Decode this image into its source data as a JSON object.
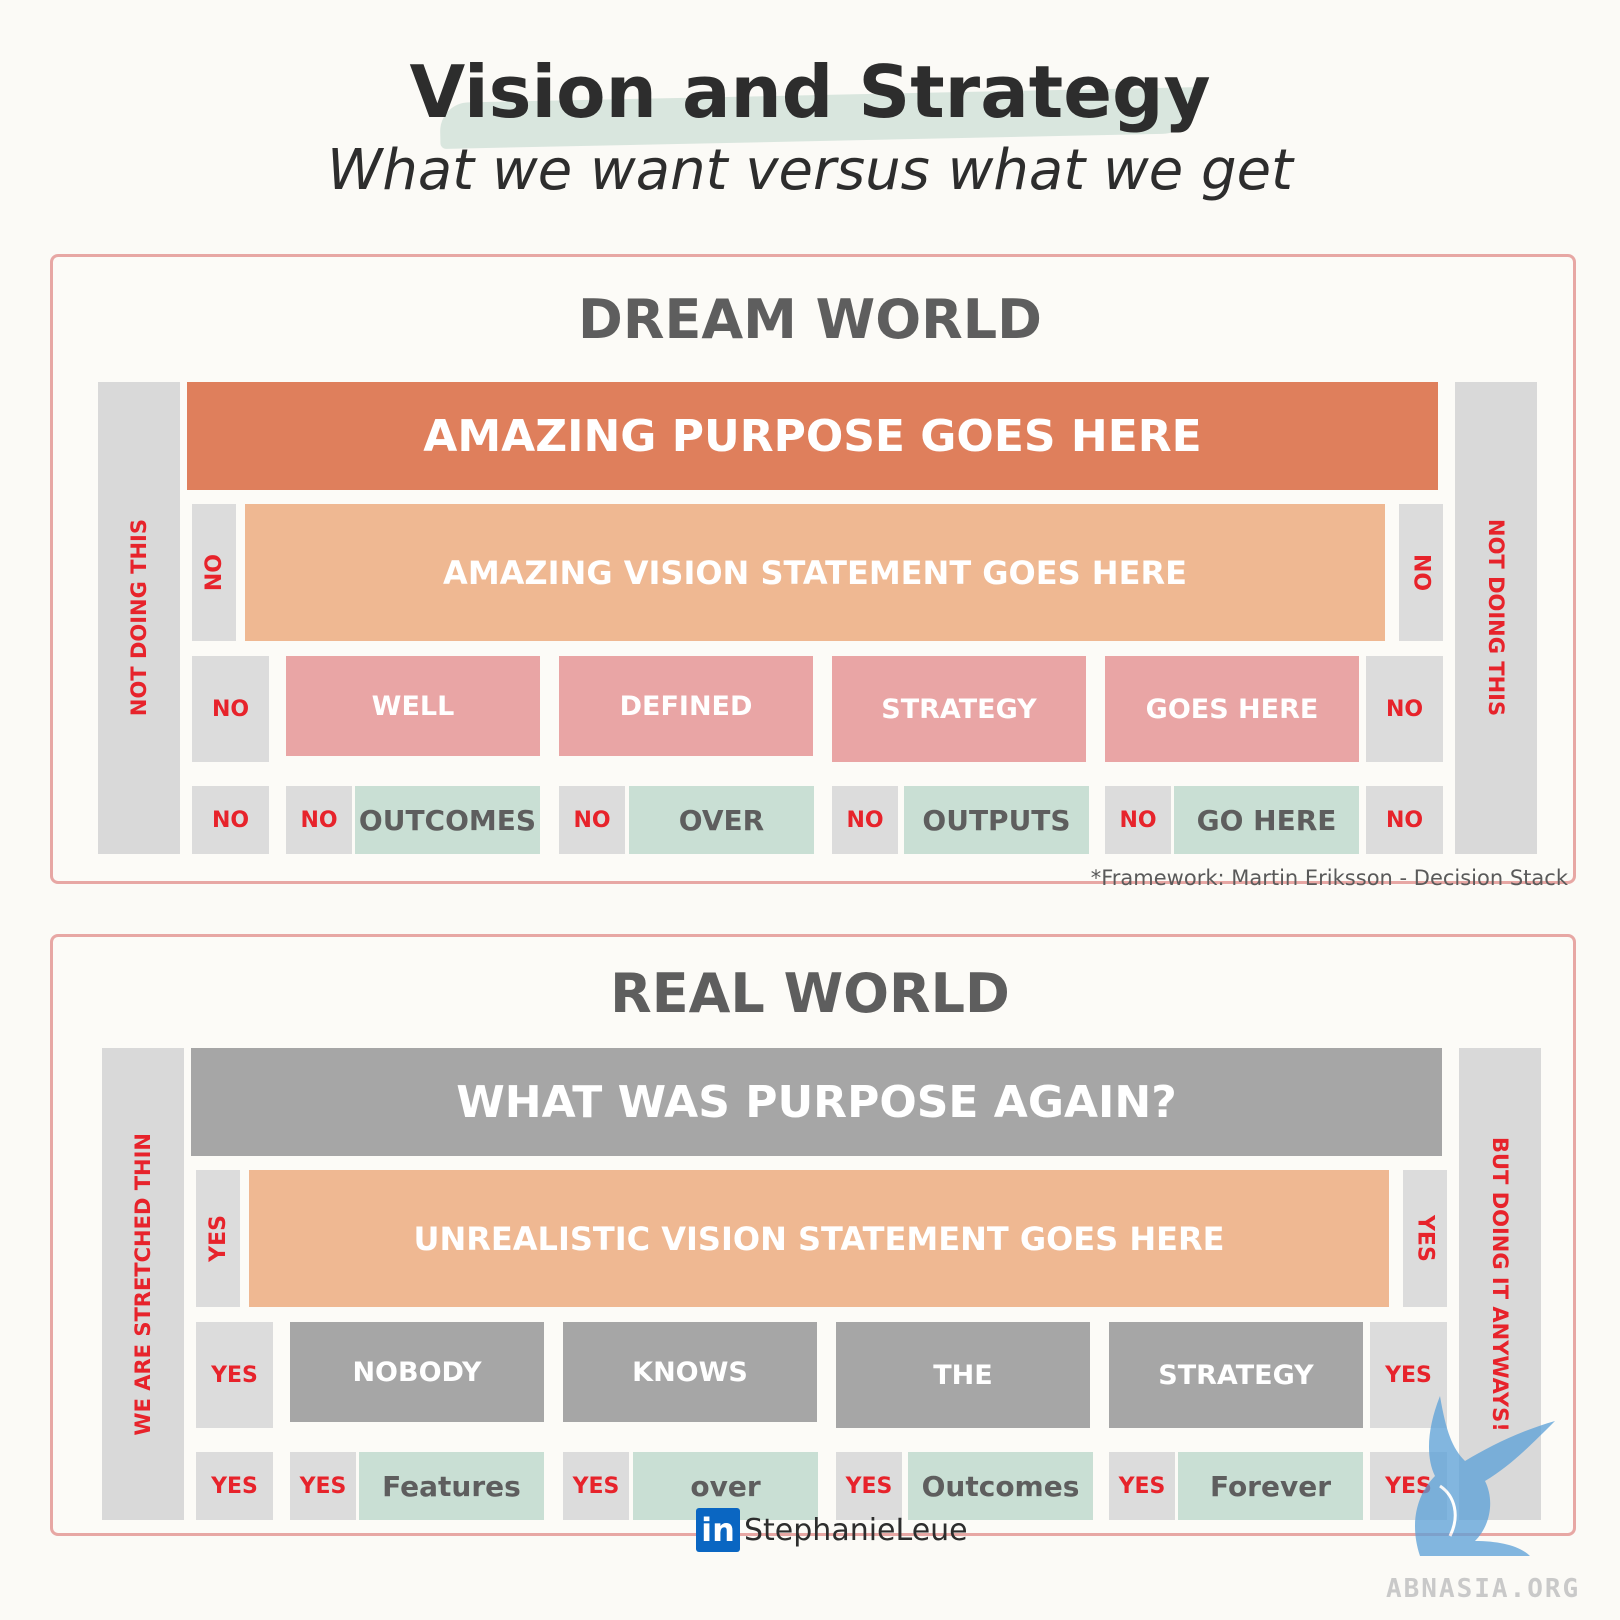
{
  "header": {
    "title": "Vision and Strategy",
    "subtitle": "What we want versus what we get"
  },
  "dream": {
    "heading": "DREAM WORLD",
    "side_left": "NOT DOING THIS",
    "side_right": "NOT DOING THIS",
    "purpose": "AMAZING PURPOSE GOES HERE",
    "vision": "AMAZING VISION STATEMENT GOES HERE",
    "vision_flank_left": "NO",
    "vision_flank_right": "NO",
    "strategy_flank_left": "NO",
    "strategy_flank_right": "NO",
    "strategy": [
      "WELL",
      "DEFINED",
      "STRATEGY",
      "GOES HERE"
    ],
    "bottom_flank_left": "NO",
    "bottom_flank_right": "NO",
    "outcome_markers": [
      "NO",
      "NO",
      "NO",
      "NO"
    ],
    "outcomes": [
      "OUTCOMES",
      "OVER",
      "OUTPUTS",
      "GO HERE"
    ]
  },
  "credit": "*Framework: Martin Eriksson - Decision Stack",
  "real": {
    "heading": "REAL WORLD",
    "side_left": "WE ARE STRETCHED THIN",
    "side_right": "BUT DOING IT ANYWAYS!",
    "purpose": "WHAT WAS PURPOSE AGAIN?",
    "vision": "UNREALISTIC VISION STATEMENT GOES HERE",
    "vision_flank_left": "YES",
    "vision_flank_right": "YES",
    "strategy_flank_left": "YES",
    "strategy_flank_right": "YES",
    "strategy": [
      "NOBODY",
      "KNOWS",
      "THE",
      "STRATEGY"
    ],
    "bottom_flank_left": "YES",
    "bottom_flank_right": "YES",
    "outcome_markers": [
      "YES",
      "YES",
      "YES",
      "YES"
    ],
    "outcomes": [
      "Features",
      "over",
      "Outcomes",
      "Forever"
    ]
  },
  "footer": {
    "linkedin_badge": "in",
    "name": "StephanieLeue",
    "linkedin_icon": "linkedin-icon"
  },
  "watermark": {
    "text": "ABNASIA.ORG",
    "color": "#5aa0d8"
  },
  "colors": {
    "purpose_dream": "#df7f5c",
    "purpose_real": "#a6a6a6",
    "vision": "#efb892",
    "strategy_dream": "#e9a5a5",
    "strategy_real": "#a6a6a6",
    "outcome": "#c9dfd4",
    "flag_text": "#e7232b",
    "panel_border": "#e7a7a4"
  }
}
